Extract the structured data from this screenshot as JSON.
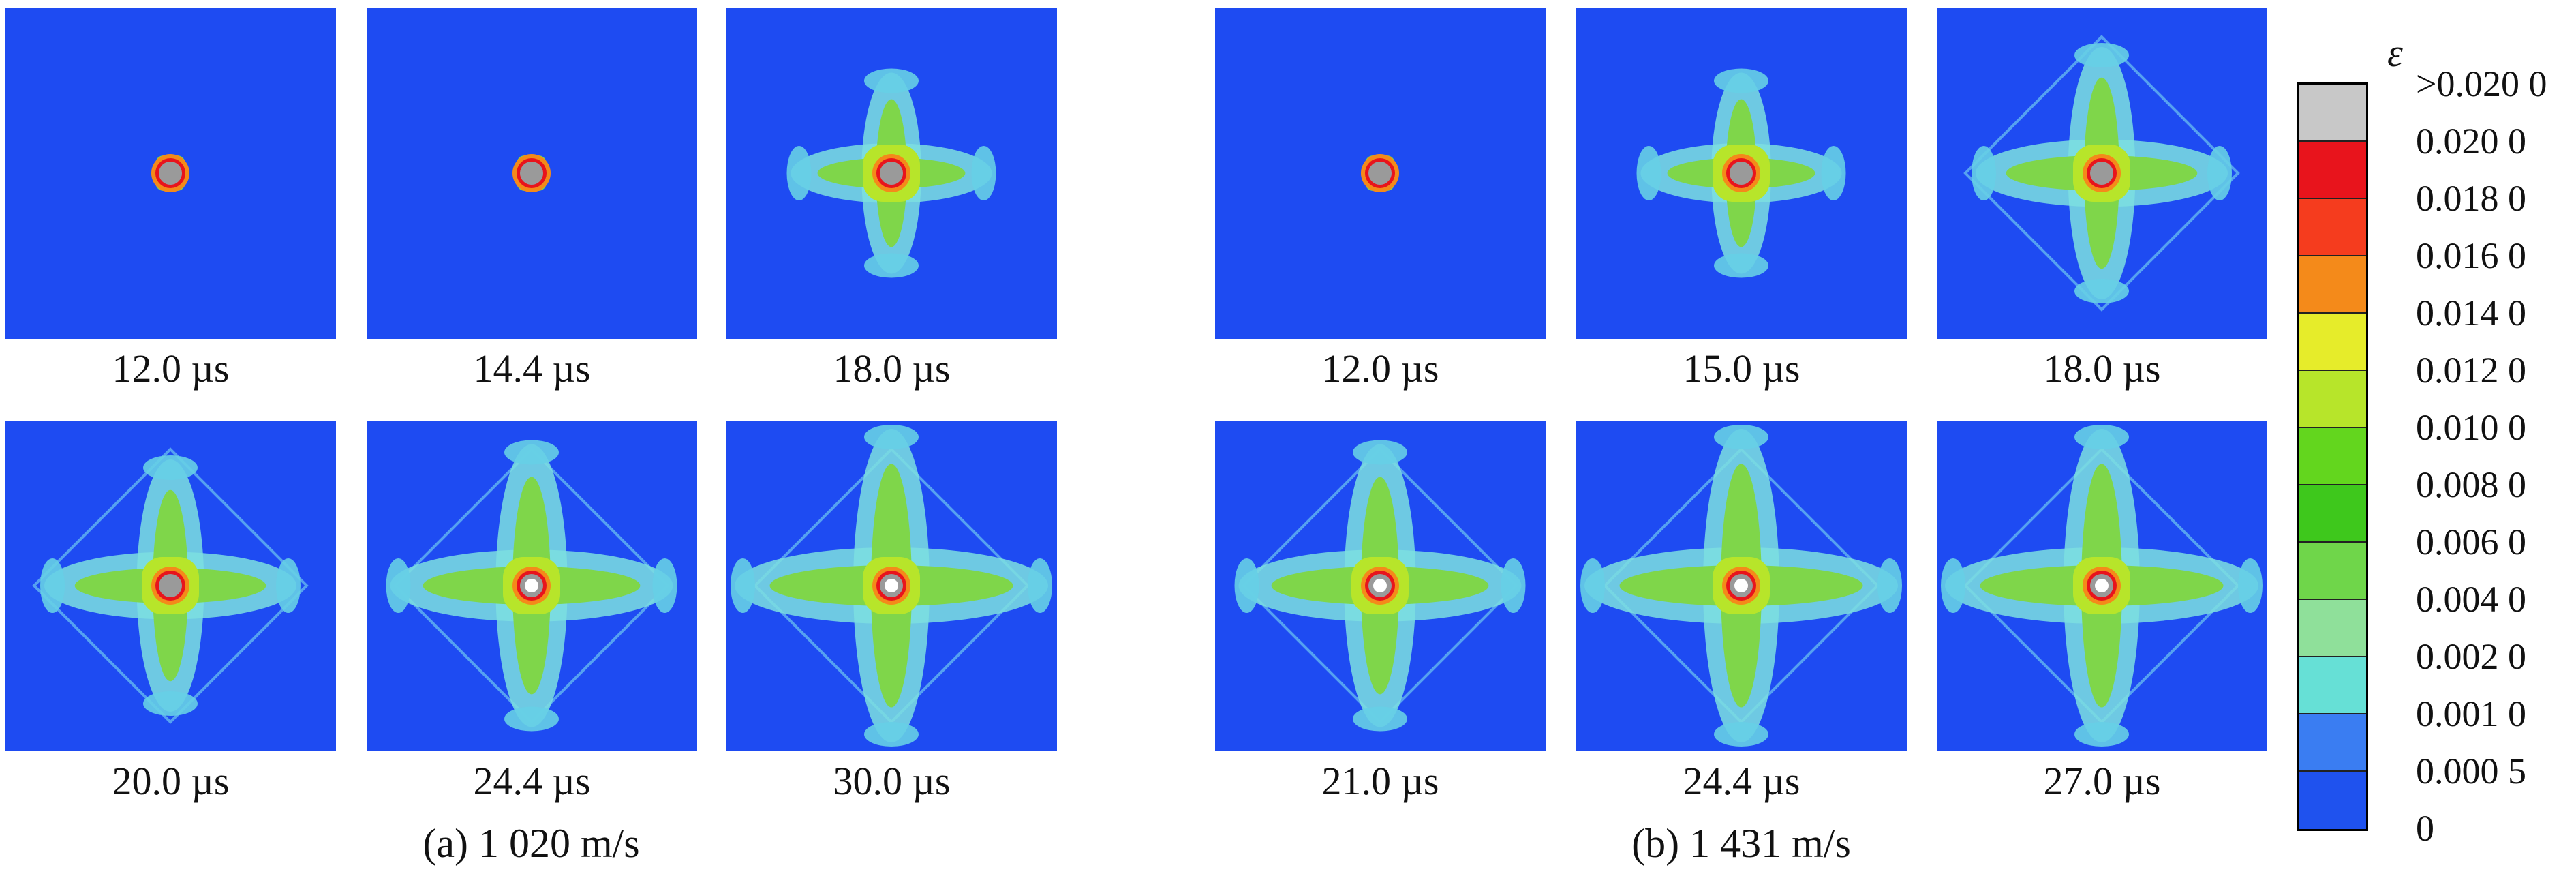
{
  "figure": {
    "groups": [
      {
        "caption": "(a) 1 020 m/s",
        "panels": [
          {
            "time": "12.0 µs",
            "stage": 0
          },
          {
            "time": "14.4 µs",
            "stage": 1
          },
          {
            "time": "18.0 µs",
            "stage": 2
          },
          {
            "time": "20.0 µs",
            "stage": 3
          },
          {
            "time": "24.4 µs",
            "stage": 4
          },
          {
            "time": "30.0 µs",
            "stage": 5
          }
        ]
      },
      {
        "caption": "(b) 1 431 m/s",
        "panels": [
          {
            "time": "12.0 µs",
            "stage": 1
          },
          {
            "time": "15.0 µs",
            "stage": 2
          },
          {
            "time": "18.0 µs",
            "stage": 3
          },
          {
            "time": "21.0 µs",
            "stage": 4
          },
          {
            "time": "24.4 µs",
            "stage": 5
          },
          {
            "time": "27.0 µs",
            "stage": 5
          }
        ]
      }
    ]
  },
  "colorbar": {
    "symbol": "ε",
    "levels": [
      ">0.020 0",
      "0.020 0",
      "0.018 0",
      "0.016 0",
      "0.014 0",
      "0.012 0",
      "0.010 0",
      "0.008 0",
      "0.006 0",
      "0.004 0",
      "0.002 0",
      "0.001 0",
      "0.000 5",
      "0"
    ],
    "colors": [
      "#c8c8c8",
      "#e8141c",
      "#f53c1e",
      "#f48a1a",
      "#e6ec2a",
      "#b7e52a",
      "#63d61e",
      "#3ec81c",
      "#6fd64a",
      "#8fe09a",
      "#66e0d6",
      "#3a7df2",
      "#1f52ee"
    ]
  }
}
